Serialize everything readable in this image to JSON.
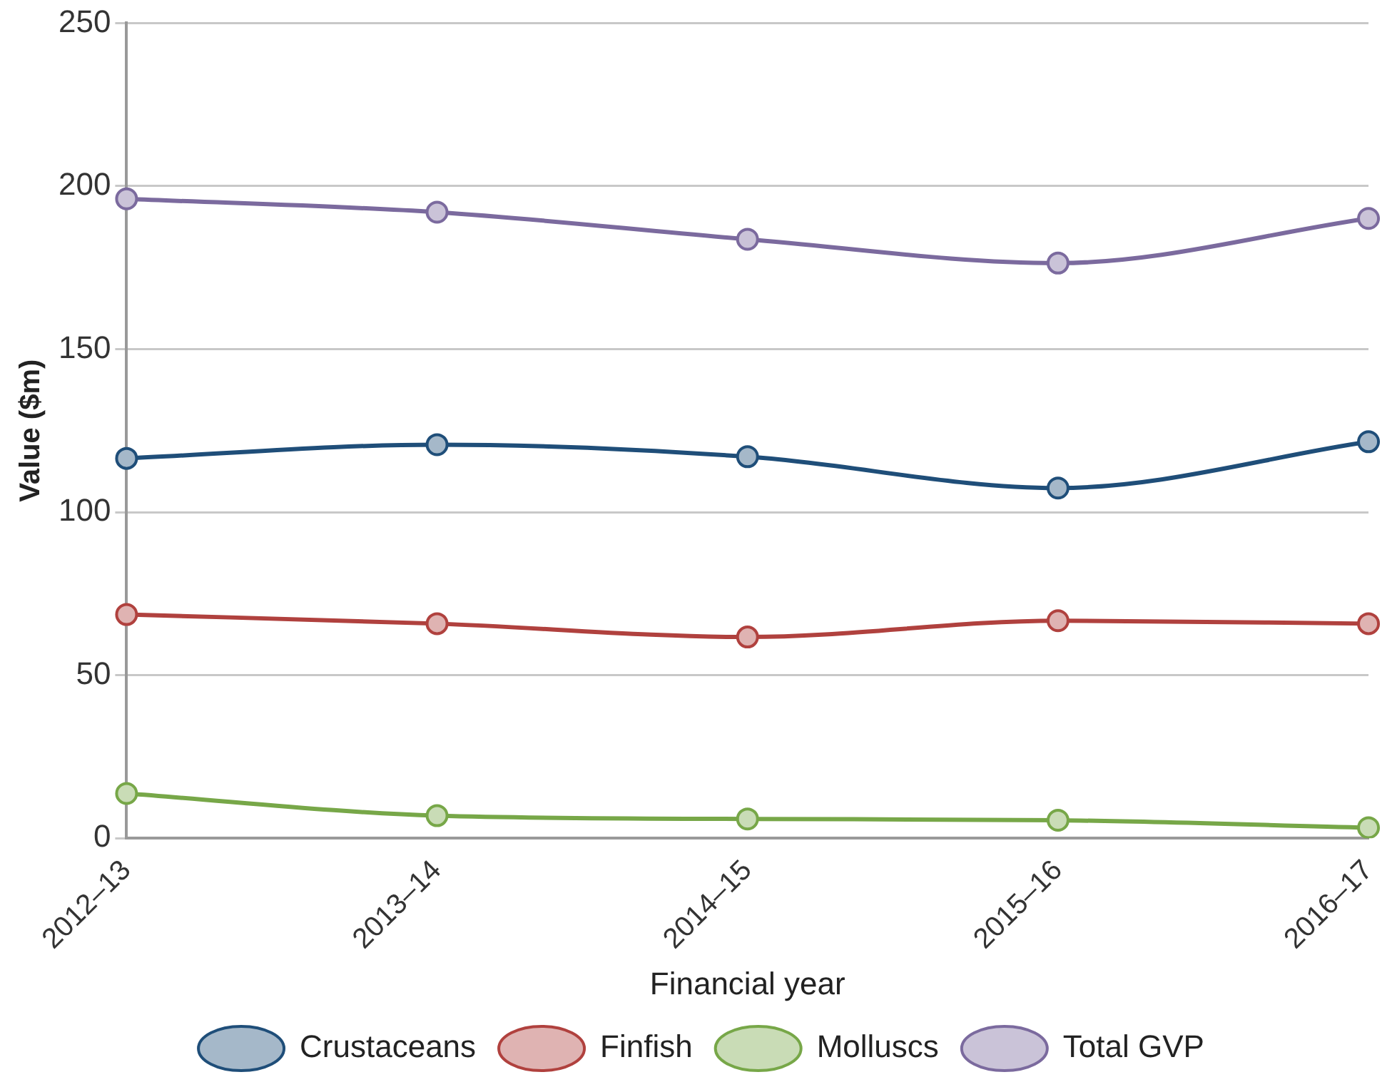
{
  "chart_data": {
    "type": "line",
    "xlabel": "Financial year",
    "ylabel": "Value ($m)",
    "categories": [
      "2012–13",
      "2013–14",
      "2014–15",
      "2015–16",
      "2016–17"
    ],
    "series": [
      {
        "name": "Crustaceans",
        "color": "#1f4e79",
        "values": [
          116.5,
          120.7,
          117,
          107.4,
          121.6
        ]
      },
      {
        "name": "Finfish",
        "color": "#b0413e",
        "values": [
          68.6,
          65.8,
          61.7,
          66.7,
          65.8
        ]
      },
      {
        "name": "Molluscs",
        "color": "#77a748",
        "values": [
          13.7,
          6.9,
          5.9,
          5.5,
          3.2
        ]
      },
      {
        "name": "Total GVP",
        "color": "#7b6a9e",
        "values": [
          196.1,
          192,
          183.7,
          176.4,
          190.1
        ]
      }
    ],
    "ylim": [
      0,
      250
    ],
    "yticks": [
      0,
      50,
      100,
      150,
      200,
      250
    ],
    "grid": "y",
    "legend": "bottom",
    "marker": "circle",
    "line_style": "solid"
  }
}
